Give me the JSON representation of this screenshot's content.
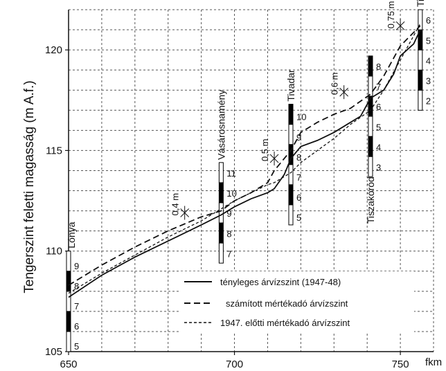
{
  "chart_data": {
    "type": "line",
    "ylabel": "Tengerszint feletti magasság (m A.f.)",
    "xlabel": "fkm",
    "xlim": [
      650,
      760
    ],
    "ylim": [
      105,
      122
    ],
    "x_ticks": [
      650,
      700,
      750
    ],
    "y_ticks": [
      105,
      110,
      115,
      120
    ],
    "grid": true,
    "series": [
      {
        "name": "tényleges árvízszint (1947-48)",
        "style": "solid",
        "points": [
          [
            650,
            107.7
          ],
          [
            660,
            108.8
          ],
          [
            670,
            109.7
          ],
          [
            680,
            110.5
          ],
          [
            690,
            111.3
          ],
          [
            696,
            111.8
          ],
          [
            700,
            112.2
          ],
          [
            705,
            112.6
          ],
          [
            710,
            112.9
          ],
          [
            712,
            113.1
          ],
          [
            715,
            113.8
          ],
          [
            717,
            114.6
          ],
          [
            720,
            115.2
          ],
          [
            725,
            115.5
          ],
          [
            730,
            115.9
          ],
          [
            735,
            116.4
          ],
          [
            738,
            116.7
          ],
          [
            741,
            117.6
          ],
          [
            745,
            118.0
          ],
          [
            748,
            118.8
          ],
          [
            750,
            119.7
          ],
          [
            754,
            120.3
          ],
          [
            756,
            121.0
          ]
        ]
      },
      {
        "name": "számított mértékadó árvízszint",
        "style": "dashed",
        "points": [
          [
            650,
            108.3
          ],
          [
            660,
            109.3
          ],
          [
            670,
            110.2
          ],
          [
            680,
            111.0
          ],
          [
            690,
            111.7
          ],
          [
            696,
            112.0
          ],
          [
            700,
            112.5
          ],
          [
            705,
            112.9
          ],
          [
            710,
            113.4
          ],
          [
            712,
            114.0
          ],
          [
            717,
            115.0
          ],
          [
            720,
            115.9
          ],
          [
            725,
            116.4
          ],
          [
            730,
            116.8
          ],
          [
            735,
            117.1
          ],
          [
            741,
            117.8
          ],
          [
            745,
            118.7
          ],
          [
            750,
            120.2
          ],
          [
            756,
            121.2
          ]
        ]
      },
      {
        "name": "1947. előtti mértékadó árvízszint",
        "style": "short-dashed",
        "points": [
          [
            650,
            107.9
          ],
          [
            660,
            108.9
          ],
          [
            670,
            109.8
          ],
          [
            680,
            110.7
          ],
          [
            690,
            111.5
          ],
          [
            696,
            112.1
          ],
          [
            700,
            112.5
          ],
          [
            705,
            112.9
          ],
          [
            710,
            113.3
          ],
          [
            712,
            113.4
          ],
          [
            717,
            113.9
          ],
          [
            720,
            114.4
          ],
          [
            725,
            115.0
          ],
          [
            730,
            115.6
          ],
          [
            735,
            116.3
          ],
          [
            741,
            117.0
          ],
          [
            745,
            118.0
          ],
          [
            750,
            119.5
          ],
          [
            756,
            121.3
          ]
        ]
      }
    ],
    "gauges": [
      {
        "name": "Lónya",
        "fkm": 650,
        "base": 105,
        "labels": [
          {
            "y": 105,
            "t": "5"
          },
          {
            "y": 106,
            "t": "6"
          },
          {
            "y": 107,
            "t": "7"
          },
          {
            "y": 108,
            "t": "8"
          },
          {
            "y": 109,
            "t": "9"
          }
        ]
      },
      {
        "name": "Vásárosnamény",
        "fkm": 696,
        "base": 109.4,
        "labels": [
          {
            "y": 109.6,
            "t": "7"
          },
          {
            "y": 110.6,
            "t": "8"
          },
          {
            "y": 111.6,
            "t": "9"
          },
          {
            "y": 112.6,
            "t": "10"
          },
          {
            "y": 113.6,
            "t": "11"
          }
        ]
      },
      {
        "name": "Tivadar",
        "fkm": 717,
        "base": 111.3,
        "labels": [
          {
            "y": 111.4,
            "t": "5"
          },
          {
            "y": 112.4,
            "t": "6"
          },
          {
            "y": 113.4,
            "t": "7"
          },
          {
            "y": 114.4,
            "t": "8"
          },
          {
            "y": 115.4,
            "t": "9"
          },
          {
            "y": 116.4,
            "t": "10"
          }
        ]
      },
      {
        "name": "Tiszakóród",
        "fkm": 741,
        "base": 113.7,
        "labels": [
          {
            "y": 113.9,
            "t": "3"
          },
          {
            "y": 114.9,
            "t": "4"
          },
          {
            "y": 115.9,
            "t": "5"
          },
          {
            "y": 116.9,
            "t": "6"
          },
          {
            "y": 117.9,
            "t": "7"
          },
          {
            "y": 118.9,
            "t": "8"
          }
        ]
      },
      {
        "name": "Tiszabecs",
        "fkm": 756,
        "base": 117.0,
        "labels": [
          {
            "y": 117.2,
            "t": "2"
          },
          {
            "y": 118.2,
            "t": "3"
          },
          {
            "y": 119.2,
            "t": "4"
          },
          {
            "y": 120.2,
            "t": "5"
          },
          {
            "y": 121.2,
            "t": "6"
          }
        ]
      }
    ],
    "annotations": [
      {
        "text": "0,4 m",
        "fkm": 685,
        "y": 111.9
      },
      {
        "text": "0,5 m",
        "fkm": 712,
        "y": 114.6
      },
      {
        "text": "0,6 m",
        "fkm": 733,
        "y": 117.9
      },
      {
        "text": "0,75 m",
        "fkm": 750,
        "y": 121.2
      }
    ]
  }
}
